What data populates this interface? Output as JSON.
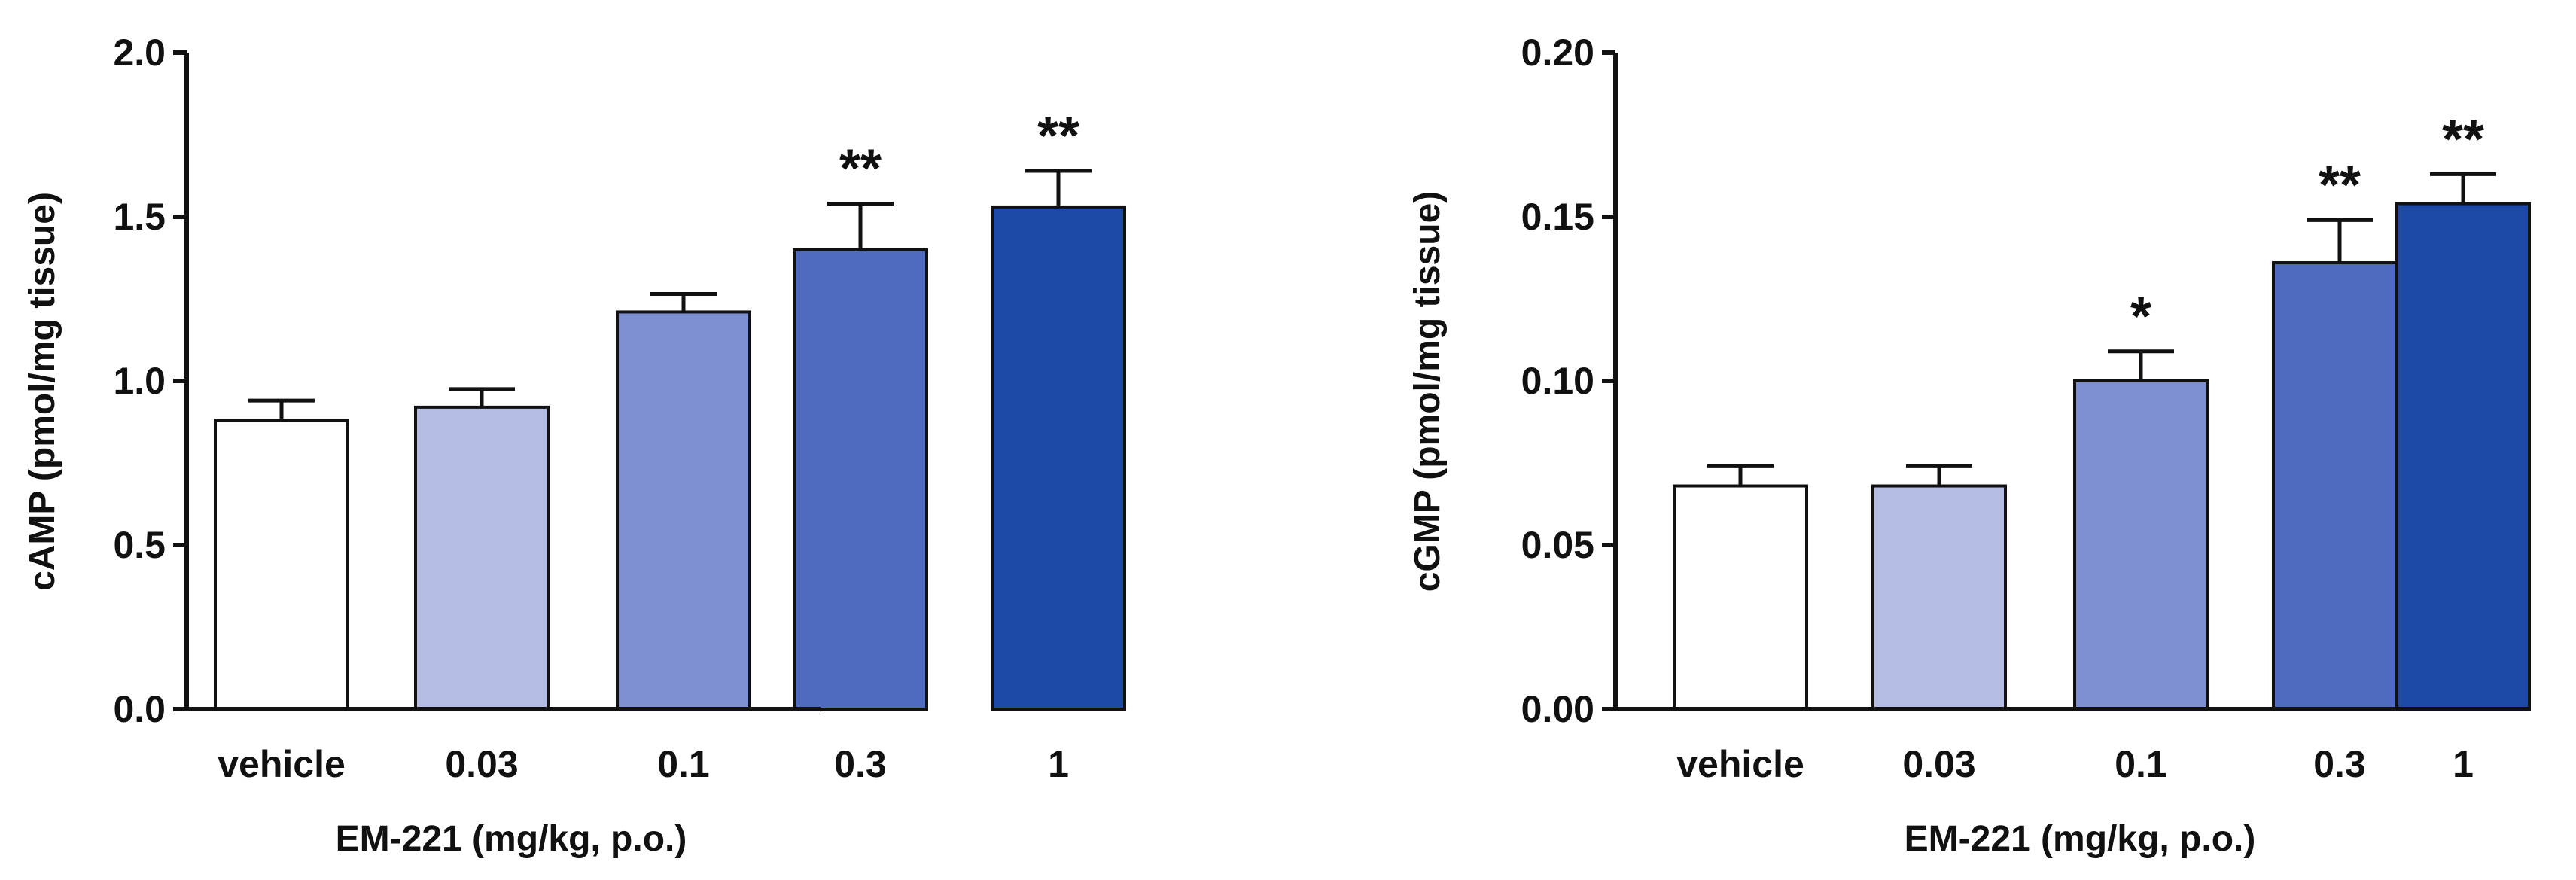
{
  "chart_data": [
    {
      "type": "bar",
      "categories": [
        "vehicle",
        "0.03",
        "0.1",
        "0.3",
        "1"
      ],
      "values": [
        0.88,
        0.92,
        1.21,
        1.4,
        1.53
      ],
      "error_upper": [
        0.94,
        0.975,
        1.265,
        1.54,
        1.64
      ],
      "significance": [
        "",
        "",
        "",
        "**",
        "**"
      ],
      "colors": [
        "#ffffff",
        "#b4bce3",
        "#7d8fd1",
        "#4f6bc0",
        "#1d4aa4"
      ],
      "title": "",
      "xlabel": "EM-221 (mg/kg, p.o.)",
      "ylabel": "cAMP (pmol/mg tissue)",
      "ylim": [
        0,
        2.0
      ],
      "yticks": [
        "0.0",
        "0.5",
        "1.0",
        "1.5",
        "2.0"
      ],
      "yticks_values": [
        0,
        0.5,
        1.0,
        1.5,
        2.0
      ]
    },
    {
      "type": "bar",
      "categories": [
        "vehicle",
        "0.03",
        "0.1",
        "0.3",
        "1"
      ],
      "values": [
        0.068,
        0.068,
        0.1,
        0.136,
        0.154
      ],
      "error_upper": [
        0.074,
        0.074,
        0.109,
        0.149,
        0.163
      ],
      "significance": [
        "",
        "",
        "*",
        "**",
        "**"
      ],
      "colors": [
        "#ffffff",
        "#b4bce3",
        "#7d8fd1",
        "#4f6bc0",
        "#1d4aa4"
      ],
      "title": "",
      "xlabel": "EM-221 (mg/kg, p.o.)",
      "ylabel": "cGMP (pmol/mg tissue)",
      "ylim": [
        0,
        0.2
      ],
      "yticks": [
        "0.00",
        "0.05",
        "0.10",
        "0.15",
        "0.20"
      ],
      "yticks_values": [
        0,
        0.05,
        0.1,
        0.15,
        0.2
      ]
    }
  ]
}
